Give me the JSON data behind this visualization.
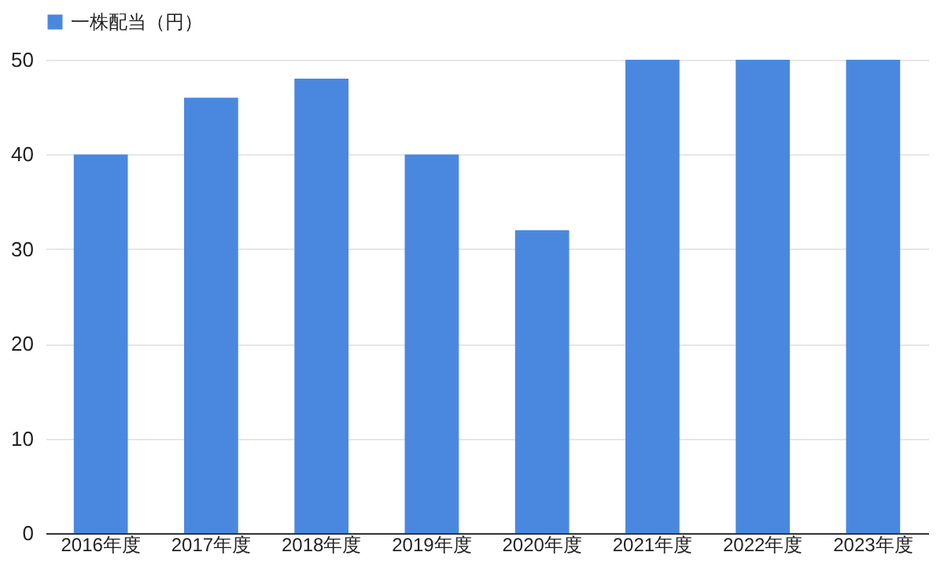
{
  "chart_data": {
    "type": "bar",
    "categories": [
      "2016年度",
      "2017年度",
      "2018年度",
      "2019年度",
      "2020年度",
      "2021年度",
      "2022年度",
      "2023年度"
    ],
    "series": [
      {
        "name": "一株配当（円）",
        "color": "#4a88e0",
        "values": [
          40,
          46,
          48,
          40,
          32,
          50,
          50,
          50
        ]
      }
    ],
    "ylim": [
      0,
      50
    ],
    "yticks": [
      0,
      10,
      20,
      30,
      40,
      50
    ],
    "grid": "y",
    "legend": "top"
  }
}
